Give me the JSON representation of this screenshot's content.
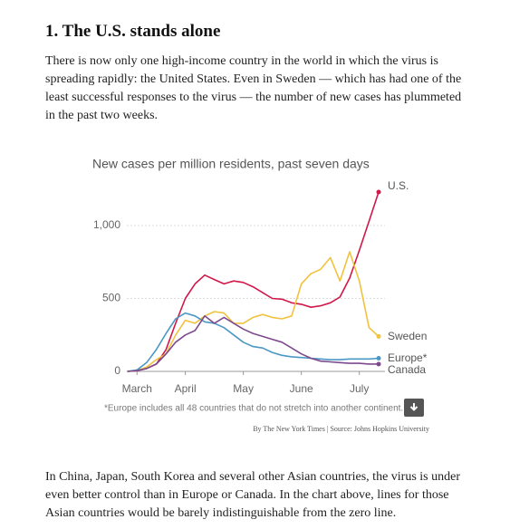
{
  "heading": "1. The U.S. stands alone",
  "paragraphs": [
    "There is now only one high-income country in the world in which the virus is spreading rapidly: the United States. Even in Sweden — which has had one of the least successful responses to the virus — the number of new cases has plummeted in the past two weeks.",
    "In China, Japan, South Korea and several other Asian countries, the virus is under even better control than in Europe or Canada. In the chart above, lines for those Asian countries would be barely indistinguishable from the zero line."
  ],
  "chart_data": {
    "type": "line",
    "title": "New cases per million residents, past seven days",
    "categories": [
      null,
      "March",
      null,
      null,
      null,
      null,
      "April",
      null,
      null,
      null,
      null,
      null,
      "May",
      null,
      null,
      null,
      null,
      null,
      "June",
      null,
      null,
      null,
      null,
      null,
      "July",
      null,
      null
    ],
    "series": [
      {
        "name": "U.S.",
        "color": "#d0184b",
        "values": [
          0,
          5,
          20,
          50,
          150,
          330,
          500,
          600,
          660,
          630,
          600,
          620,
          610,
          580,
          540,
          500,
          495,
          470,
          460,
          440,
          450,
          470,
          510,
          640,
          830,
          1030,
          1230
        ]
      },
      {
        "name": "Sweden",
        "color": "#f0c23e",
        "values": [
          0,
          5,
          30,
          80,
          120,
          250,
          350,
          330,
          380,
          410,
          400,
          330,
          330,
          370,
          390,
          370,
          360,
          380,
          600,
          670,
          700,
          780,
          620,
          820,
          620,
          300,
          240
        ]
      },
      {
        "name": "Europe*",
        "color": "#4b98c4",
        "values": [
          0,
          10,
          60,
          150,
          260,
          360,
          400,
          380,
          340,
          330,
          300,
          250,
          200,
          170,
          160,
          130,
          110,
          100,
          95,
          90,
          85,
          80,
          80,
          85,
          85,
          85,
          90
        ]
      },
      {
        "name": "Canada",
        "color": "#7d4a8e",
        "values": [
          0,
          5,
          20,
          50,
          120,
          200,
          250,
          280,
          380,
          330,
          370,
          330,
          290,
          260,
          240,
          220,
          200,
          160,
          120,
          90,
          70,
          65,
          60,
          55,
          55,
          50,
          50
        ]
      }
    ],
    "ylim": [
      0,
      1300
    ],
    "yticks": [
      0,
      500,
      {
        "value": 1000,
        "label": "1,000"
      }
    ],
    "grid": true,
    "footnote": "*Europe includes all 48 countries that do not stretch into another continent.",
    "credit": "By The New York Times | Source: Johns Hopkins University"
  }
}
